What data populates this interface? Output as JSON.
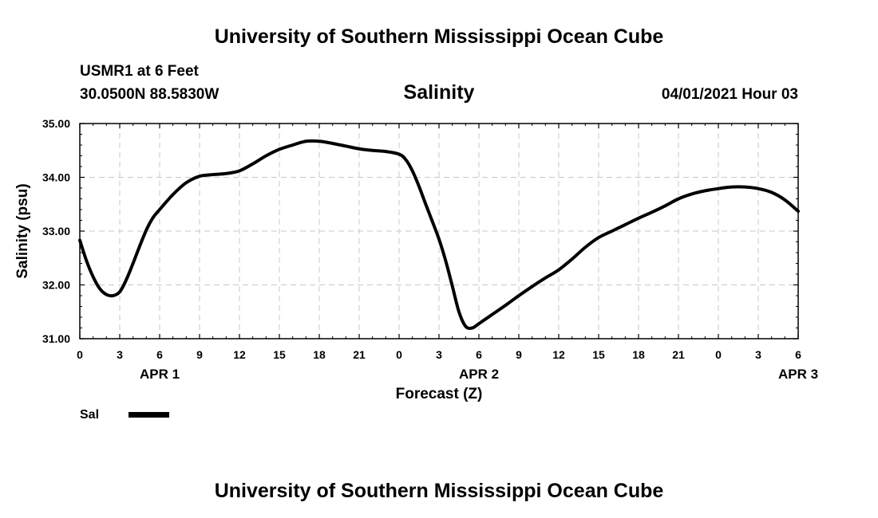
{
  "header": {
    "title": "University of Southern Mississippi Ocean Cube",
    "station": "USMR1 at 6 Feet",
    "coords": "30.0500N  88.5830W",
    "variable": "Salinity",
    "datetime": "04/01/2021 Hour 03"
  },
  "footer": {
    "title": "University of Southern Mississippi Ocean Cube"
  },
  "legend": {
    "label": "Sal",
    "color": "#000000"
  },
  "chart_data": {
    "type": "line",
    "title": "Salinity",
    "xlabel": "Forecast (Z)",
    "ylabel": "Salinity (psu)",
    "ylim": [
      31.0,
      35.0
    ],
    "xlim": [
      0,
      54
    ],
    "grid": true,
    "x_unit": "hours from 04/01/2021 00Z",
    "x_tick_labels": [
      "0",
      "3",
      "6",
      "9",
      "12",
      "15",
      "18",
      "21",
      "0",
      "3",
      "6",
      "9",
      "12",
      "15",
      "18",
      "21",
      "0",
      "3",
      "6"
    ],
    "y_tick_labels": [
      "31.00",
      "32.00",
      "33.00",
      "34.00",
      "35.00"
    ],
    "date_labels": [
      {
        "label": "APR 1"
      },
      {
        "label": "APR 2"
      },
      {
        "label": "APR 3"
      }
    ],
    "series": [
      {
        "name": "Sal",
        "color": "#000000",
        "x": [
          0,
          0.5,
          1,
          1.5,
          2,
          2.5,
          3,
          3.5,
          4,
          4.5,
          5,
          5.5,
          6,
          7,
          8,
          9,
          10,
          11,
          12,
          13,
          14,
          15,
          16,
          17,
          18,
          19,
          20,
          21,
          22,
          23,
          24,
          24.5,
          25,
          25.5,
          26,
          26.5,
          27,
          27.5,
          28,
          28.5,
          29,
          29.5,
          30,
          31,
          32,
          33,
          34,
          35,
          36,
          37,
          38,
          39,
          40,
          41,
          42,
          43,
          44,
          45,
          46,
          47,
          48,
          49,
          50,
          51,
          52,
          53,
          54
        ],
        "values": [
          32.83,
          32.45,
          32.15,
          31.93,
          31.82,
          31.8,
          31.87,
          32.1,
          32.4,
          32.72,
          33.02,
          33.25,
          33.4,
          33.68,
          33.9,
          34.02,
          34.05,
          34.07,
          34.12,
          34.25,
          34.4,
          34.52,
          34.6,
          34.67,
          34.67,
          34.63,
          34.58,
          34.53,
          34.5,
          34.48,
          34.43,
          34.33,
          34.12,
          33.83,
          33.5,
          33.18,
          32.85,
          32.45,
          31.98,
          31.5,
          31.23,
          31.2,
          31.28,
          31.45,
          31.62,
          31.8,
          31.97,
          32.13,
          32.28,
          32.48,
          32.7,
          32.88,
          33.0,
          33.12,
          33.24,
          33.35,
          33.47,
          33.6,
          33.69,
          33.75,
          33.79,
          33.82,
          33.82,
          33.79,
          33.72,
          33.58,
          33.37
        ]
      }
    ]
  }
}
